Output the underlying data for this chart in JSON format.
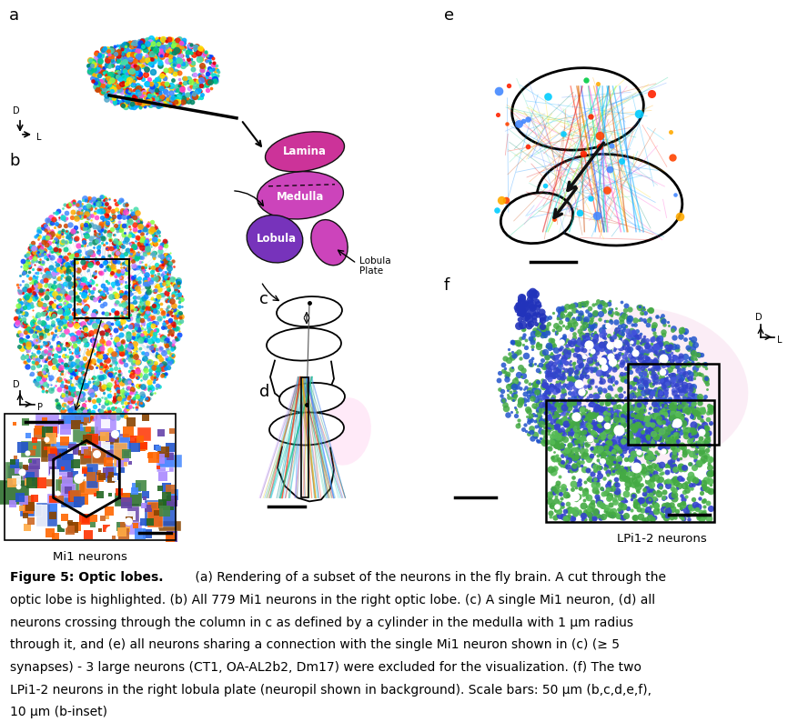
{
  "caption_bold": "Figure 5: Optic lobes.",
  "caption_rest": " (a) Rendering of a subset of the neurons in the fly brain. A cut through the optic lobe is highlighted. (b) All 779 Mi1 neurons in the right optic lobe. (c) A single Mi1 neuron, (d) all neurons crossing through the column in c as defined by a cylinder in the medulla with 1 μm radius through it, and (e) all neurons sharing a connection with the single Mi1 neuron shown in (c) (≥ 5 synapses) - 3 large neurons (CT1, OA-AL2b2, Dm17) were excluded for the visualization. (f) The two LPi1-2 neurons in the right lobula plate (neuropil shown in background). Scale bars: 50 μm (b,c,d,e,f), 10 μm (b-inset)",
  "labels": [
    "a",
    "b",
    "c",
    "d",
    "e",
    "f"
  ],
  "mi1_label": "Mi1 neurons",
  "lpi_label": "LPi1-2 neurons",
  "bg_color": "#ffffff",
  "label_fontsize": 13,
  "caption_fontsize": 10.0,
  "sub_label_fontsize": 9.5,
  "lamina_color": "#cc3399",
  "medulla_color": "#cc44bb",
  "lobula_color": "#7733bb",
  "lobula_plate_color": "#cc44bb"
}
